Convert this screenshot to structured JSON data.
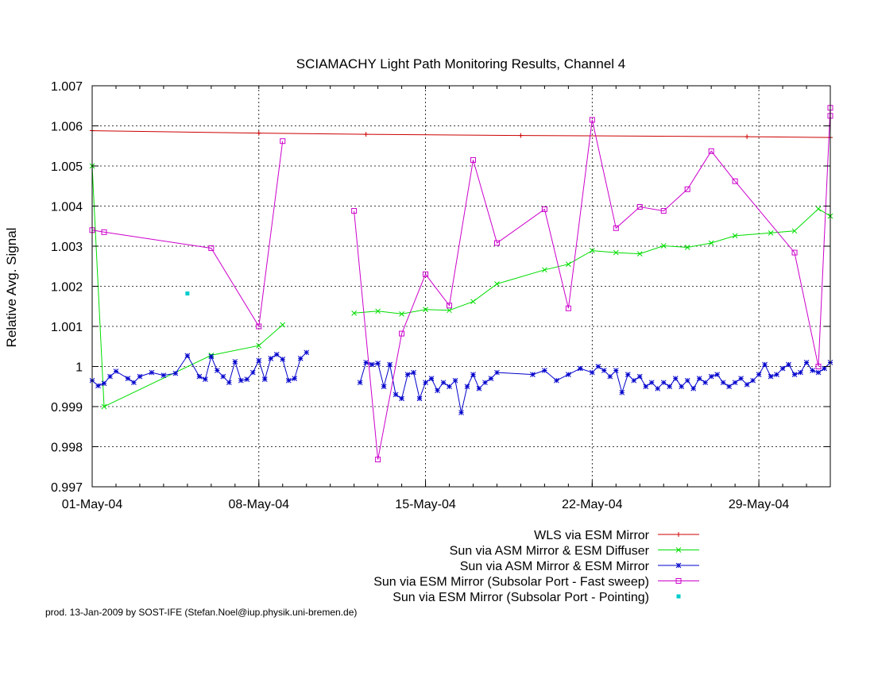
{
  "chart_data": {
    "type": "line",
    "title": "SCIAMACHY Light Path Monitoring Results, Channel 4",
    "ylabel": "Relative Avg. Signal",
    "xlabel": "",
    "xlim": [
      "2004-05-01",
      "2004-06-01"
    ],
    "ylim": [
      0.997,
      1.007
    ],
    "x_ticks": [
      {
        "date": "2004-05-01",
        "label": "01-May-04"
      },
      {
        "date": "2004-05-08",
        "label": "08-May-04"
      },
      {
        "date": "2004-05-15",
        "label": "15-May-04"
      },
      {
        "date": "2004-05-22",
        "label": "22-May-04"
      },
      {
        "date": "2004-05-29",
        "label": "29-May-04"
      }
    ],
    "y_ticks": [
      {
        "value": 0.997,
        "label": "0.997"
      },
      {
        "value": 0.998,
        "label": "0.998"
      },
      {
        "value": 0.999,
        "label": "0.999"
      },
      {
        "value": 1.0,
        "label": "1"
      },
      {
        "value": 1.001,
        "label": "1.001"
      },
      {
        "value": 1.002,
        "label": "1.002"
      },
      {
        "value": 1.003,
        "label": "1.003"
      },
      {
        "value": 1.004,
        "label": "1.004"
      },
      {
        "value": 1.005,
        "label": "1.005"
      },
      {
        "value": 1.006,
        "label": "1.006"
      },
      {
        "value": 1.007,
        "label": "1.007"
      }
    ],
    "grid": true,
    "legend_position": "bottom-right",
    "series": [
      {
        "name": "WLS via ESM Mirror",
        "color": "#cc0000",
        "marker": "plus",
        "segments": [
          [
            [
              "2004-05-01T00:00",
              1.00588
            ],
            [
              "2004-05-08T00:00",
              1.00582
            ],
            [
              "2004-05-12T12:00",
              1.00579
            ],
            [
              "2004-05-19T00:00",
              1.00576
            ],
            [
              "2004-05-28T12:00",
              1.00573
            ],
            [
              "2004-06-01T00:00",
              1.00571
            ]
          ]
        ]
      },
      {
        "name": "Sun via ASM Mirror & ESM Diffuser",
        "color": "#00dd00",
        "marker": "cross",
        "segments": [
          [
            [
              "2004-05-01T00:00",
              1.005
            ],
            [
              "2004-05-01T12:00",
              0.999
            ],
            [
              "2004-05-06T00:00",
              1.00028
            ],
            [
              "2004-05-08T00:00",
              1.00052
            ],
            [
              "2004-05-09T00:00",
              1.00104
            ]
          ],
          [
            [
              "2004-05-12T00:00",
              1.00133
            ],
            [
              "2004-05-13T00:00",
              1.00138
            ],
            [
              "2004-05-14T00:00",
              1.00131
            ],
            [
              "2004-05-15T00:00",
              1.00142
            ],
            [
              "2004-05-16T00:00",
              1.0014
            ],
            [
              "2004-05-17T00:00",
              1.00162
            ],
            [
              "2004-05-18T00:00",
              1.00206
            ],
            [
              "2004-05-20T00:00",
              1.00241
            ],
            [
              "2004-05-21T00:00",
              1.00255
            ],
            [
              "2004-05-22T00:00",
              1.00289
            ],
            [
              "2004-05-23T00:00",
              1.00284
            ],
            [
              "2004-05-24T00:00",
              1.00281
            ],
            [
              "2004-05-25T00:00",
              1.00301
            ],
            [
              "2004-05-26T00:00",
              1.00297
            ],
            [
              "2004-05-27T00:00",
              1.00308
            ],
            [
              "2004-05-28T00:00",
              1.00326
            ],
            [
              "2004-05-29T12:00",
              1.00333
            ],
            [
              "2004-05-30T12:00",
              1.00338
            ],
            [
              "2004-05-31T12:00",
              1.00393
            ],
            [
              "2004-06-01T00:00",
              1.00375
            ]
          ]
        ]
      },
      {
        "name": "Sun via ASM Mirror & ESM Mirror",
        "color": "#0000cc",
        "marker": "star",
        "segments": [
          [
            [
              "2004-05-01T00:00",
              0.99965
            ],
            [
              "2004-05-01T06:00",
              0.99952
            ],
            [
              "2004-05-01T12:00",
              0.99958
            ],
            [
              "2004-05-01T18:00",
              0.99975
            ],
            [
              "2004-05-02T00:00",
              0.99988
            ],
            [
              "2004-05-02T12:00",
              0.9997
            ],
            [
              "2004-05-02T18:00",
              0.9996
            ],
            [
              "2004-05-03T00:00",
              0.99975
            ],
            [
              "2004-05-03T12:00",
              0.99985
            ],
            [
              "2004-05-04T00:00",
              0.99978
            ],
            [
              "2004-05-04T12:00",
              0.99983
            ],
            [
              "2004-05-05T00:00",
              1.00027
            ],
            [
              "2004-05-05T12:00",
              0.99975
            ],
            [
              "2004-05-05T18:00",
              0.99968
            ],
            [
              "2004-05-06T00:00",
              1.00025
            ],
            [
              "2004-05-06T06:00",
              0.9999
            ],
            [
              "2004-05-06T12:00",
              0.99975
            ],
            [
              "2004-05-06T18:00",
              0.9996
            ],
            [
              "2004-05-07T00:00",
              1.00012
            ],
            [
              "2004-05-07T06:00",
              0.99965
            ],
            [
              "2004-05-07T12:00",
              0.99968
            ],
            [
              "2004-05-07T18:00",
              0.99985
            ],
            [
              "2004-05-08T00:00",
              1.00015
            ],
            [
              "2004-05-08T06:00",
              0.99968
            ],
            [
              "2004-05-08T12:00",
              1.0002
            ],
            [
              "2004-05-08T18:00",
              1.0003
            ],
            [
              "2004-05-09T00:00",
              1.00018
            ],
            [
              "2004-05-09T06:00",
              0.99965
            ],
            [
              "2004-05-09T12:00",
              0.9997
            ],
            [
              "2004-05-09T18:00",
              1.0002
            ],
            [
              "2004-05-10T00:00",
              1.00035
            ]
          ],
          [
            [
              "2004-05-12T06:00",
              0.9996
            ],
            [
              "2004-05-12T12:00",
              1.0001
            ],
            [
              "2004-05-12T18:00",
              1.00005
            ],
            [
              "2004-05-13T00:00",
              1.00008
            ],
            [
              "2004-05-13T06:00",
              0.9995
            ],
            [
              "2004-05-13T12:00",
              1.00005
            ],
            [
              "2004-05-13T18:00",
              0.9993
            ],
            [
              "2004-05-14T00:00",
              0.9992
            ],
            [
              "2004-05-14T06:00",
              0.9998
            ],
            [
              "2004-05-14T12:00",
              0.99985
            ],
            [
              "2004-05-14T18:00",
              0.9992
            ],
            [
              "2004-05-15T00:00",
              0.9996
            ],
            [
              "2004-05-15T06:00",
              0.9997
            ],
            [
              "2004-05-15T12:00",
              0.9994
            ],
            [
              "2004-05-15T18:00",
              0.9996
            ],
            [
              "2004-05-16T00:00",
              0.9995
            ],
            [
              "2004-05-16T06:00",
              0.99965
            ],
            [
              "2004-05-16T12:00",
              0.99885
            ],
            [
              "2004-05-16T18:00",
              0.9995
            ],
            [
              "2004-05-17T00:00",
              0.9998
            ],
            [
              "2004-05-17T06:00",
              0.99945
            ],
            [
              "2004-05-17T12:00",
              0.9996
            ],
            [
              "2004-05-17T18:00",
              0.9997
            ],
            [
              "2004-05-18T00:00",
              0.99985
            ],
            [
              "2004-05-19T12:00",
              0.9998
            ],
            [
              "2004-05-20T00:00",
              0.9999
            ],
            [
              "2004-05-20T12:00",
              0.99965
            ],
            [
              "2004-05-21T00:00",
              0.9998
            ],
            [
              "2004-05-21T12:00",
              0.99995
            ],
            [
              "2004-05-22T00:00",
              0.99985
            ],
            [
              "2004-05-22T06:00",
              1.0
            ],
            [
              "2004-05-22T12:00",
              0.9999
            ],
            [
              "2004-05-22T18:00",
              0.99975
            ],
            [
              "2004-05-23T00:00",
              0.9999
            ],
            [
              "2004-05-23T06:00",
              0.99935
            ],
            [
              "2004-05-23T12:00",
              0.9998
            ],
            [
              "2004-05-23T18:00",
              0.99965
            ],
            [
              "2004-05-24T00:00",
              0.99975
            ],
            [
              "2004-05-24T06:00",
              0.9995
            ],
            [
              "2004-05-24T12:00",
              0.9996
            ],
            [
              "2004-05-24T18:00",
              0.99945
            ],
            [
              "2004-05-25T00:00",
              0.9996
            ],
            [
              "2004-05-25T06:00",
              0.9995
            ],
            [
              "2004-05-25T12:00",
              0.9997
            ],
            [
              "2004-05-25T18:00",
              0.9995
            ],
            [
              "2004-05-26T00:00",
              0.99965
            ],
            [
              "2004-05-26T06:00",
              0.99945
            ],
            [
              "2004-05-26T12:00",
              0.9997
            ],
            [
              "2004-05-26T18:00",
              0.9996
            ],
            [
              "2004-05-27T00:00",
              0.99975
            ],
            [
              "2004-05-27T06:00",
              0.9998
            ],
            [
              "2004-05-27T12:00",
              0.9996
            ],
            [
              "2004-05-27T18:00",
              0.9995
            ],
            [
              "2004-05-28T00:00",
              0.9996
            ],
            [
              "2004-05-28T06:00",
              0.9997
            ],
            [
              "2004-05-28T12:00",
              0.99955
            ],
            [
              "2004-05-28T18:00",
              0.99965
            ],
            [
              "2004-05-29T00:00",
              0.9998
            ],
            [
              "2004-05-29T06:00",
              1.00005
            ],
            [
              "2004-05-29T12:00",
              0.99975
            ],
            [
              "2004-05-29T18:00",
              0.9998
            ],
            [
              "2004-05-30T00:00",
              0.99995
            ],
            [
              "2004-05-30T06:00",
              1.00005
            ],
            [
              "2004-05-30T12:00",
              0.9998
            ],
            [
              "2004-05-30T18:00",
              0.99985
            ],
            [
              "2004-05-31T00:00",
              1.0001
            ],
            [
              "2004-05-31T06:00",
              0.9999
            ],
            [
              "2004-05-31T12:00",
              0.99985
            ],
            [
              "2004-05-31T18:00",
              0.99995
            ],
            [
              "2004-06-01T00:00",
              1.0001
            ]
          ]
        ]
      },
      {
        "name": "Sun via ESM Mirror (Subsolar Port - Fast sweep)",
        "color": "#cc00cc",
        "marker": "square",
        "segments": [
          [
            [
              "2004-05-01T00:00",
              1.0034
            ],
            [
              "2004-05-01T12:00",
              1.00335
            ],
            [
              "2004-05-06T00:00",
              1.00295
            ],
            [
              "2004-05-08T00:00",
              1.001
            ],
            [
              "2004-05-09T00:00",
              1.00562
            ]
          ],
          [
            [
              "2004-05-12T00:00",
              1.00388
            ],
            [
              "2004-05-13T00:00",
              0.99768
            ],
            [
              "2004-05-14T00:00",
              1.00082
            ],
            [
              "2004-05-15T00:00",
              1.0023
            ],
            [
              "2004-05-16T00:00",
              1.00152
            ],
            [
              "2004-05-17T00:00",
              1.00515
            ],
            [
              "2004-05-18T00:00",
              1.00308
            ],
            [
              "2004-05-20T00:00",
              1.00392
            ],
            [
              "2004-05-21T00:00",
              1.00145
            ],
            [
              "2004-05-22T00:00",
              1.00615
            ],
            [
              "2004-05-23T00:00",
              1.00345
            ],
            [
              "2004-05-24T00:00",
              1.00398
            ],
            [
              "2004-05-25T00:00",
              1.00388
            ],
            [
              "2004-05-26T00:00",
              1.00442
            ],
            [
              "2004-05-27T00:00",
              1.00537
            ],
            [
              "2004-05-28T00:00",
              1.00462
            ],
            [
              "2004-05-30T12:00",
              1.00284
            ],
            [
              "2004-05-31T12:00",
              1.0
            ],
            [
              "2004-06-01T00:00",
              1.00645
            ],
            [
              "2004-06-01T00:00",
              1.00625
            ]
          ]
        ]
      },
      {
        "name": "Sun via ESM Mirror (Subsolar Port - Pointing)",
        "color": "#00cccc",
        "marker": "dot",
        "segments": [
          [
            [
              "2004-05-05T00:00",
              1.00182
            ]
          ]
        ]
      }
    ]
  },
  "footer": "prod. 13-Jan-2009 by SOST-IFE (Stefan.Noel@iup.physik.uni-bremen.de)"
}
